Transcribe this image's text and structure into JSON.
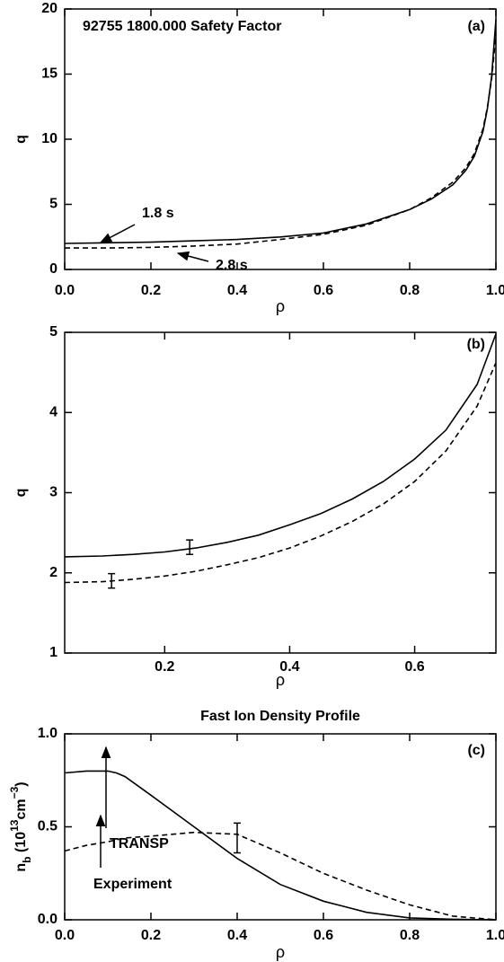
{
  "chart_data": [
    {
      "type": "line",
      "title": "92755 1800.000 Safety Factor",
      "panel_label": "(a)",
      "xlabel": "ρ",
      "ylabel": "q",
      "xlim": [
        0,
        1.0
      ],
      "ylim": [
        0,
        20
      ],
      "xticks": [
        {
          "value": 0,
          "label": "0.0"
        },
        0.2,
        0.4,
        0.6,
        0.8,
        {
          "value": 1,
          "label": "1.0"
        }
      ],
      "yticks": [
        0,
        5,
        10,
        15,
        20
      ],
      "x": [
        0,
        0.1,
        0.2,
        0.3,
        0.4,
        0.5,
        0.6,
        0.7,
        0.8,
        0.85,
        0.9,
        0.93,
        0.95,
        0.97,
        0.98,
        0.99,
        1.0
      ],
      "series": [
        {
          "name": "1.8 s",
          "color": "#000000",
          "dashed": false,
          "values": [
            2.0,
            2.05,
            2.1,
            2.2,
            2.3,
            2.5,
            2.8,
            3.5,
            4.6,
            5.4,
            6.5,
            7.6,
            8.7,
            10.6,
            12.3,
            14.8,
            19.2
          ]
        },
        {
          "name": "2.8 s",
          "color": "#000000",
          "dashed": true,
          "values": [
            1.65,
            1.65,
            1.7,
            1.8,
            1.95,
            2.3,
            2.7,
            3.4,
            4.6,
            5.5,
            6.7,
            7.8,
            8.9,
            10.8,
            12.4,
            14.6,
            18.0
          ]
        }
      ]
    },
    {
      "type": "line",
      "panel_label": "(b)",
      "xlabel": "ρ",
      "ylabel": "q",
      "xlim": [
        0.04,
        0.73
      ],
      "ylim": [
        1,
        5
      ],
      "xticks": [
        0.2,
        0.4,
        0.6
      ],
      "yticks": [
        1,
        2,
        3,
        4,
        5
      ],
      "x": [
        0.04,
        0.1,
        0.15,
        0.2,
        0.25,
        0.3,
        0.35,
        0.4,
        0.45,
        0.5,
        0.55,
        0.6,
        0.65,
        0.7,
        0.73
      ],
      "series": [
        {
          "color": "#000000",
          "dashed": false,
          "values": [
            2.2,
            2.21,
            2.23,
            2.26,
            2.31,
            2.38,
            2.47,
            2.6,
            2.74,
            2.92,
            3.14,
            3.42,
            3.78,
            4.35,
            4.98
          ]
        },
        {
          "color": "#000000",
          "dashed": true,
          "values": [
            1.88,
            1.89,
            1.92,
            1.96,
            2.02,
            2.1,
            2.19,
            2.31,
            2.46,
            2.64,
            2.86,
            3.14,
            3.52,
            4.08,
            4.62
          ]
        }
      ],
      "error_bars": [
        {
          "x": 0.24,
          "y": 2.32,
          "err": 0.09
        },
        {
          "x": 0.115,
          "y": 1.9,
          "err": 0.09
        }
      ]
    },
    {
      "type": "line",
      "title": "Fast Ion Density Profile",
      "panel_label": "(c)",
      "xlabel": "ρ",
      "ylabel_parts": [
        {
          "text": "n"
        },
        {
          "text": "b",
          "shift": "sub"
        },
        {
          "text": " (10"
        },
        {
          "text": "13",
          "shift": "super"
        },
        {
          "text": "cm"
        },
        {
          "text": "−3",
          "shift": "super"
        },
        {
          "text": ")"
        }
      ],
      "xlim": [
        0,
        1.0
      ],
      "ylim": [
        0,
        1.0
      ],
      "xticks": [
        {
          "value": 0,
          "label": "0.0"
        },
        0.2,
        0.4,
        0.6,
        0.8,
        {
          "value": 1,
          "label": "1.0"
        }
      ],
      "yticks": [
        {
          "value": 0,
          "label": "0.0"
        },
        0.5,
        {
          "value": 1,
          "label": "1.0"
        }
      ],
      "x": [
        0,
        0.05,
        0.1,
        0.12,
        0.14,
        0.2,
        0.3,
        0.4,
        0.5,
        0.6,
        0.7,
        0.8,
        0.9,
        1.0
      ],
      "series": [
        {
          "name": "TRANSP",
          "color": "#000000",
          "dashed": false,
          "values": [
            0.79,
            0.8,
            0.8,
            0.79,
            0.77,
            0.67,
            0.5,
            0.33,
            0.19,
            0.1,
            0.04,
            0.01,
            0.003,
            0
          ]
        },
        {
          "name": "Experiment",
          "color": "#000000",
          "dashed": true,
          "values": [
            0.37,
            0.4,
            0.42,
            0.43,
            0.44,
            0.45,
            0.47,
            0.46,
            0.36,
            0.25,
            0.16,
            0.08,
            0.02,
            0
          ]
        }
      ],
      "error_bars": [
        {
          "x": 0.4,
          "y": 0.44,
          "err": 0.08
        }
      ]
    }
  ]
}
